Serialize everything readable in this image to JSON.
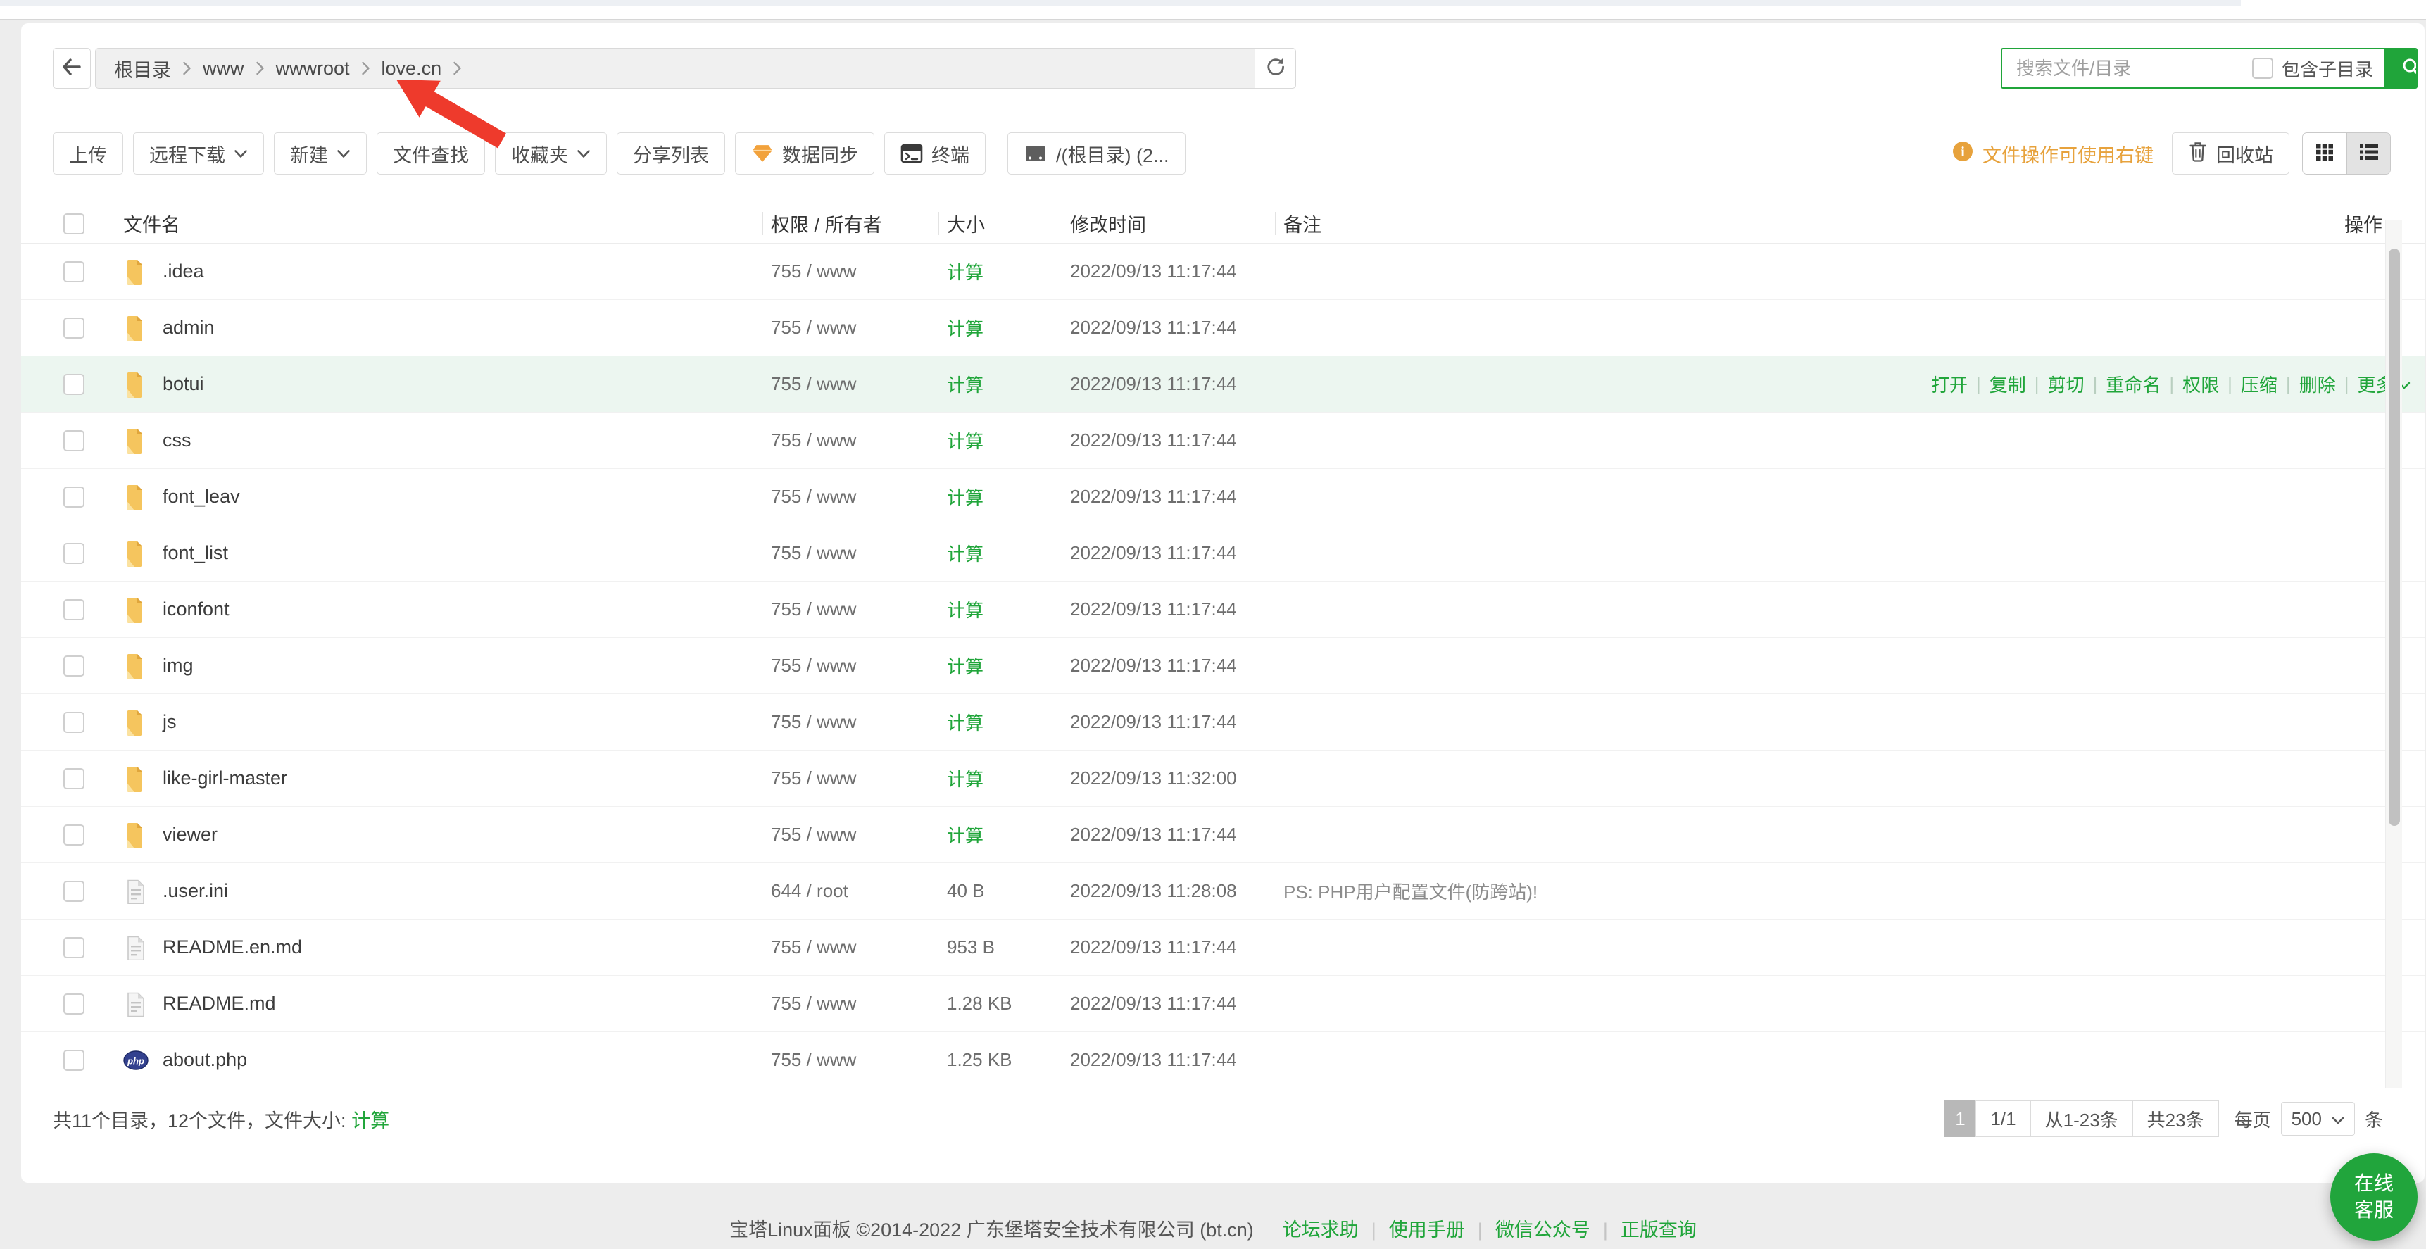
{
  "colors": {
    "green": "#20a53a",
    "orange": "#e7a23c",
    "red": "#ee3a2c",
    "folder_yellow": "#f5c55e",
    "highlight_row": "#ecf6f0"
  },
  "breadcrumb": {
    "items": [
      "根目录",
      "www",
      "wwwroot",
      "love.cn"
    ]
  },
  "search": {
    "placeholder": "搜索文件/目录",
    "include_label": "包含子目录"
  },
  "toolbar": {
    "buttons": [
      {
        "label": "上传"
      },
      {
        "label": "远程下载",
        "caret": true
      },
      {
        "label": "新建",
        "caret": true
      },
      {
        "label": "文件查找"
      },
      {
        "label": "收藏夹",
        "caret": true
      },
      {
        "label": "分享列表"
      },
      {
        "label": "数据同步",
        "icon": "gem"
      },
      {
        "label": "终端",
        "icon": "terminal"
      },
      {
        "label": "/(根目录) (2...",
        "icon": "disk",
        "separated": true
      }
    ],
    "hint": "文件操作可使用右键",
    "recycle_label": "回收站"
  },
  "table": {
    "headers": [
      "文件名",
      "权限 / 所有者",
      "大小",
      "修改时间",
      "备注",
      "操作"
    ],
    "rows": [
      {
        "name": ".idea",
        "icon": "folder",
        "perm": "755 / www",
        "size": "计算",
        "size_link": true,
        "mtime": "2022/09/13 11:17:44",
        "note": ""
      },
      {
        "name": "admin",
        "icon": "folder",
        "perm": "755 / www",
        "size": "计算",
        "size_link": true,
        "mtime": "2022/09/13 11:17:44",
        "note": ""
      },
      {
        "name": "botui",
        "icon": "folder",
        "perm": "755 / www",
        "size": "计算",
        "size_link": true,
        "mtime": "2022/09/13 11:17:44",
        "note": "",
        "highlight": true,
        "show_actions": true
      },
      {
        "name": "css",
        "icon": "folder",
        "perm": "755 / www",
        "size": "计算",
        "size_link": true,
        "mtime": "2022/09/13 11:17:44",
        "note": ""
      },
      {
        "name": "font_leav",
        "icon": "folder",
        "perm": "755 / www",
        "size": "计算",
        "size_link": true,
        "mtime": "2022/09/13 11:17:44",
        "note": ""
      },
      {
        "name": "font_list",
        "icon": "folder",
        "perm": "755 / www",
        "size": "计算",
        "size_link": true,
        "mtime": "2022/09/13 11:17:44",
        "note": ""
      },
      {
        "name": "iconfont",
        "icon": "folder",
        "perm": "755 / www",
        "size": "计算",
        "size_link": true,
        "mtime": "2022/09/13 11:17:44",
        "note": ""
      },
      {
        "name": "img",
        "icon": "folder",
        "perm": "755 / www",
        "size": "计算",
        "size_link": true,
        "mtime": "2022/09/13 11:17:44",
        "note": ""
      },
      {
        "name": "js",
        "icon": "folder",
        "perm": "755 / www",
        "size": "计算",
        "size_link": true,
        "mtime": "2022/09/13 11:17:44",
        "note": ""
      },
      {
        "name": "like-girl-master",
        "icon": "folder",
        "perm": "755 / www",
        "size": "计算",
        "size_link": true,
        "mtime": "2022/09/13 11:32:00",
        "note": ""
      },
      {
        "name": "viewer",
        "icon": "folder",
        "perm": "755 / www",
        "size": "计算",
        "size_link": true,
        "mtime": "2022/09/13 11:17:44",
        "note": ""
      },
      {
        "name": ".user.ini",
        "icon": "file",
        "perm": "644 / root",
        "size": "40 B",
        "size_link": false,
        "mtime": "2022/09/13 11:28:08",
        "note": "PS: PHP用户配置文件(防跨站)!"
      },
      {
        "name": "README.en.md",
        "icon": "file",
        "perm": "755 / www",
        "size": "953 B",
        "size_link": false,
        "mtime": "2022/09/13 11:17:44",
        "note": ""
      },
      {
        "name": "README.md",
        "icon": "file",
        "perm": "755 / www",
        "size": "1.28 KB",
        "size_link": false,
        "mtime": "2022/09/13 11:17:44",
        "note": ""
      },
      {
        "name": "about.php",
        "icon": "php",
        "perm": "755 / www",
        "size": "1.25 KB",
        "size_link": false,
        "mtime": "2022/09/13 11:17:44",
        "note": ""
      }
    ]
  },
  "row_actions": {
    "links": [
      "打开",
      "复制",
      "剪切",
      "重命名",
      "权限",
      "压缩",
      "删除"
    ],
    "more_label": "更多"
  },
  "summary": {
    "prefix": "共11个目录，12个文件，文件大小: ",
    "calc": "计算"
  },
  "pagination": {
    "current": "1",
    "pages": "1/1",
    "range": "从1-23条",
    "total": "共23条",
    "per_prefix": "每页",
    "per_value": "500",
    "per_suffix": "条"
  },
  "page_footer": {
    "copyright": "宝塔Linux面板 ©2014-2022 广东堡塔安全技术有限公司 (bt.cn)",
    "links": [
      "论坛求助",
      "使用手册",
      "微信公众号",
      "正版查询"
    ]
  },
  "service": {
    "lines": [
      "在线",
      "客服"
    ]
  }
}
